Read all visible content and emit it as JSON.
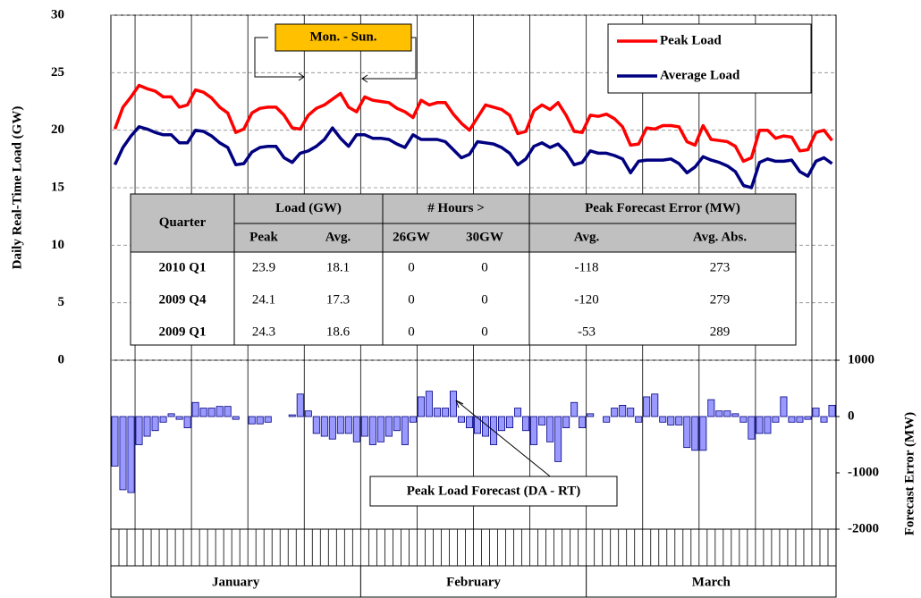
{
  "chart_data": {
    "type": "line",
    "ylabel": "Daily Real-Time Load (GW)",
    "y2label": "Forecast Error (MW)",
    "ylim": [
      0,
      30
    ],
    "yticks": [
      0,
      5,
      10,
      15,
      20,
      25,
      30
    ],
    "y2lim": [
      -2000,
      1000
    ],
    "y2ticks": [
      -2000,
      -1000,
      0,
      1000
    ],
    "grid": true,
    "legend": "upper right",
    "annotations": [
      "Mon. - Sun."
    ],
    "categories": [
      "January",
      "January",
      "January",
      "January",
      "January",
      "January",
      "January",
      "January",
      "January",
      "January",
      "January",
      "January",
      "January",
      "January",
      "January",
      "January",
      "January",
      "January",
      "January",
      "January",
      "January",
      "January",
      "January",
      "January",
      "January",
      "January",
      "January",
      "January",
      "January",
      "January",
      "January",
      "February",
      "February",
      "February",
      "February",
      "February",
      "February",
      "February",
      "February",
      "February",
      "February",
      "February",
      "February",
      "February",
      "February",
      "February",
      "February",
      "February",
      "February",
      "February",
      "February",
      "February",
      "February",
      "February",
      "February",
      "February",
      "February",
      "February",
      "February",
      "March",
      "March",
      "March",
      "March",
      "March",
      "March",
      "March",
      "March",
      "March",
      "March",
      "March",
      "March",
      "March",
      "March",
      "March",
      "March",
      "March",
      "March",
      "March",
      "March",
      "March",
      "March",
      "March",
      "March",
      "March",
      "March",
      "March",
      "March",
      "March",
      "March",
      "March"
    ],
    "series": [
      {
        "name": "Peak Load",
        "type": "line",
        "color": "#ff0000",
        "values": [
          20.1,
          22.0,
          22.9,
          23.9,
          23.6,
          23.4,
          22.9,
          22.9,
          22.0,
          22.2,
          23.5,
          23.3,
          22.8,
          22.0,
          21.5,
          19.8,
          20.1,
          21.5,
          21.9,
          22.0,
          22.0,
          21.3,
          20.2,
          20.1,
          21.3,
          21.9,
          22.2,
          22.7,
          23.2,
          22.0,
          21.6,
          22.9,
          22.6,
          22.5,
          22.4,
          21.9,
          21.6,
          21.1,
          22.6,
          22.2,
          22.4,
          22.4,
          21.4,
          20.6,
          20.0,
          21.1,
          22.2,
          22.0,
          21.8,
          21.3,
          19.7,
          19.9,
          21.7,
          22.2,
          21.8,
          22.4,
          21.3,
          19.9,
          19.8,
          21.3,
          21.2,
          21.4,
          21.0,
          20.3,
          18.7,
          18.8,
          20.2,
          20.1,
          20.4,
          20.4,
          20.3,
          19.0,
          18.7,
          20.4,
          19.2,
          19.1,
          19.0,
          18.6,
          17.3,
          17.6,
          20.0,
          20.0,
          19.3,
          19.5,
          19.4,
          18.2,
          18.3,
          19.8,
          20.0,
          19.1
        ]
      },
      {
        "name": "Average Load",
        "type": "line",
        "color": "#000080",
        "values": [
          17.0,
          18.5,
          19.5,
          20.3,
          20.1,
          19.8,
          19.6,
          19.6,
          18.9,
          18.9,
          20.0,
          19.9,
          19.5,
          18.9,
          18.5,
          17.0,
          17.1,
          18.1,
          18.5,
          18.6,
          18.6,
          17.6,
          17.2,
          18.0,
          18.2,
          18.6,
          19.2,
          20.2,
          19.3,
          18.6,
          19.6,
          19.6,
          19.3,
          19.3,
          19.2,
          18.8,
          18.5,
          19.6,
          19.2,
          19.2,
          19.2,
          19.0,
          18.3,
          17.6,
          17.9,
          19.0,
          18.9,
          18.8,
          18.5,
          18.0,
          17.0,
          17.5,
          18.6,
          18.9,
          18.5,
          18.8,
          18.1,
          17.0,
          17.2,
          18.2,
          18.0,
          18.0,
          17.8,
          17.5,
          16.3,
          17.3,
          17.4,
          17.4,
          17.4,
          17.5,
          17.1,
          16.3,
          16.8,
          17.7,
          17.4,
          17.2,
          16.9,
          16.4,
          15.2,
          15.0,
          17.2,
          17.5,
          17.3,
          17.3,
          17.4,
          16.4,
          16.0,
          17.3,
          17.6,
          17.1
        ]
      },
      {
        "name": "Peak Load Forecast (DA - RT)",
        "type": "bar",
        "axis": "y2",
        "color": "#9999ff",
        "values": [
          -880,
          -1300,
          -1350,
          -500,
          -350,
          -250,
          -100,
          50,
          -50,
          -200,
          250,
          150,
          150,
          180,
          180,
          -50,
          0,
          -130,
          -130,
          -100,
          0,
          0,
          30,
          400,
          100,
          -300,
          -350,
          -400,
          -300,
          -300,
          -450,
          -350,
          -500,
          -450,
          -350,
          -250,
          -500,
          -100,
          350,
          450,
          150,
          150,
          450,
          -100,
          -200,
          -300,
          -350,
          -500,
          -250,
          -200,
          150,
          -250,
          -500,
          -150,
          -450,
          -800,
          -200,
          250,
          -200,
          50,
          0,
          -100,
          150,
          200,
          150,
          -100,
          350,
          400,
          -100,
          -150,
          -150,
          -550,
          -600,
          -600,
          300,
          100,
          100,
          50,
          -100,
          -400,
          -300,
          -300,
          -100,
          350,
          -100,
          -100,
          -50,
          150,
          -100,
          200
        ]
      }
    ],
    "table": {
      "corner": "Quarter",
      "group_headers": [
        "Load (GW)",
        "# Hours >",
        "Peak Forecast Error (MW)"
      ],
      "columns": [
        "Peak",
        "Avg.",
        "26GW",
        "30GW",
        "Avg.",
        "Avg. Abs."
      ],
      "rows": [
        [
          "2010 Q1",
          23.9,
          18.1,
          0,
          0,
          -118,
          273
        ],
        [
          "2009 Q4",
          24.1,
          17.3,
          0,
          0,
          -120,
          279
        ],
        [
          "2009 Q1",
          24.3,
          18.6,
          0,
          0,
          -53,
          289
        ]
      ]
    }
  }
}
